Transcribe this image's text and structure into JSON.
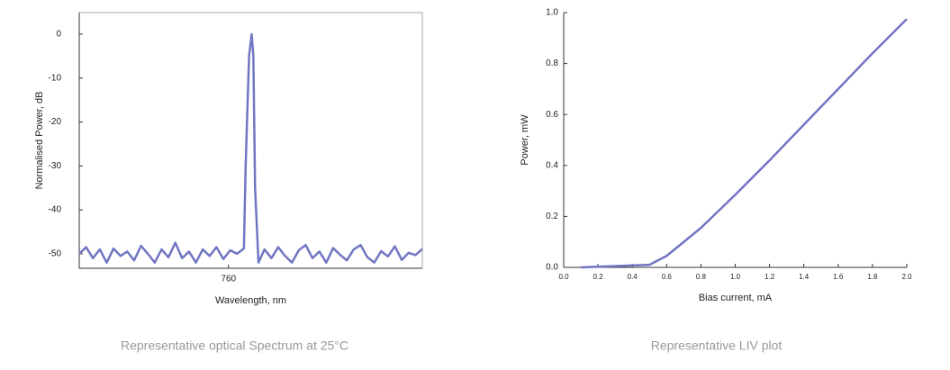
{
  "chart_data": [
    {
      "type": "line",
      "caption": "Representative optical Spectrum at 25°C",
      "x_label": "Wavelength, nm",
      "y_label": "Normalised Power, dB",
      "color": "#7176c2",
      "xlim": [
        751.3,
        771.3
      ],
      "xticks": [
        760
      ],
      "ylim": [
        -53.3,
        4.9
      ],
      "yticks": [
        0,
        -10,
        -20,
        -30,
        -40,
        -50
      ],
      "x": [
        751.3,
        751.7,
        752.1,
        752.5,
        752.9,
        753.3,
        753.7,
        754.1,
        754.5,
        754.9,
        755.3,
        755.7,
        756.1,
        756.5,
        756.9,
        757.3,
        757.7,
        758.1,
        758.5,
        758.9,
        759.3,
        759.7,
        760.1,
        760.5,
        760.9,
        761.0,
        761.2,
        761.35,
        761.45,
        761.55,
        761.75,
        762.1,
        762.5,
        762.9,
        763.3,
        763.7,
        764.1,
        764.5,
        764.9,
        765.3,
        765.7,
        766.1,
        766.5,
        766.9,
        767.3,
        767.7,
        768.1,
        768.5,
        768.9,
        769.3,
        769.7,
        770.1,
        770.5,
        770.9,
        771.3
      ],
      "values": [
        -50,
        -48.5,
        -51,
        -49,
        -52,
        -48.8,
        -50.5,
        -49.5,
        -51.5,
        -48.2,
        -50,
        -52,
        -49,
        -50.8,
        -47.5,
        -51,
        -49.5,
        -52,
        -49,
        -50.5,
        -48.5,
        -51.2,
        -49.2,
        -50,
        -48.8,
        -30,
        -5,
        0,
        -5,
        -35,
        -52,
        -49,
        -51,
        -48.5,
        -50.5,
        -52,
        -49.2,
        -48,
        -51,
        -49.5,
        -52,
        -48.7,
        -50.2,
        -51.5,
        -49,
        -48,
        -50.8,
        -52,
        -49.4,
        -50.6,
        -48.3,
        -51.4,
        -49.8,
        -50.3,
        -48.9
      ]
    },
    {
      "type": "line",
      "caption": "Representative LIV plot",
      "x_label": "Bias current, mA",
      "y_label": "Power, mW",
      "color": "#7176c2",
      "xlim": [
        0,
        2
      ],
      "xticks": [
        {
          "value": 0,
          "label": "0.0"
        },
        0.2,
        0.4,
        0.6,
        0.8,
        {
          "value": 1,
          "label": "1.0"
        },
        1.2,
        1.4,
        1.6,
        1.8,
        {
          "value": 2,
          "label": "2.0"
        }
      ],
      "ylim": [
        0,
        1
      ],
      "yticks": [
        {
          "value": 0,
          "label": "0.0"
        },
        0.2,
        0.4,
        0.6,
        0.8,
        {
          "value": 1,
          "label": "1.0"
        }
      ],
      "x": [
        0.1,
        0.5,
        0.6,
        0.8,
        1.0,
        1.2,
        1.4,
        1.6,
        1.8,
        2.0
      ],
      "values": [
        0.0,
        0.01,
        0.045,
        0.155,
        0.285,
        0.42,
        0.56,
        0.7,
        0.84,
        0.975
      ]
    }
  ]
}
